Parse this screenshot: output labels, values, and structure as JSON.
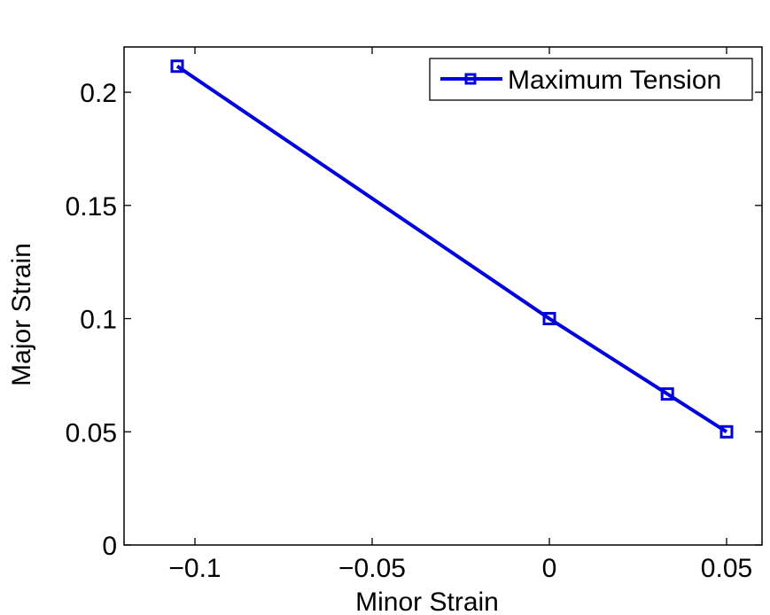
{
  "chart_data": {
    "type": "line",
    "title": "",
    "xlabel": "Minor Strain",
    "ylabel": "Major Strain",
    "xlim": [
      -0.12,
      0.06
    ],
    "ylim": [
      0,
      0.22
    ],
    "xticks": [
      -0.1,
      -0.05,
      0,
      0.05
    ],
    "xtick_labels": [
      "−0.1",
      "−0.05",
      "0",
      "0.05"
    ],
    "yticks": [
      0,
      0.05,
      0.1,
      0.15,
      0.2
    ],
    "ytick_labels": [
      "0",
      "0.05",
      "0.1",
      "0.15",
      "0.2"
    ],
    "grid": false,
    "legend_position": "top-right",
    "series": [
      {
        "name": "Maximum Tension",
        "color": "#0000dd",
        "marker": "square",
        "x": [
          -0.105,
          0,
          0.0333,
          0.05
        ],
        "y": [
          0.2115,
          0.1,
          0.0667,
          0.05
        ]
      }
    ]
  }
}
